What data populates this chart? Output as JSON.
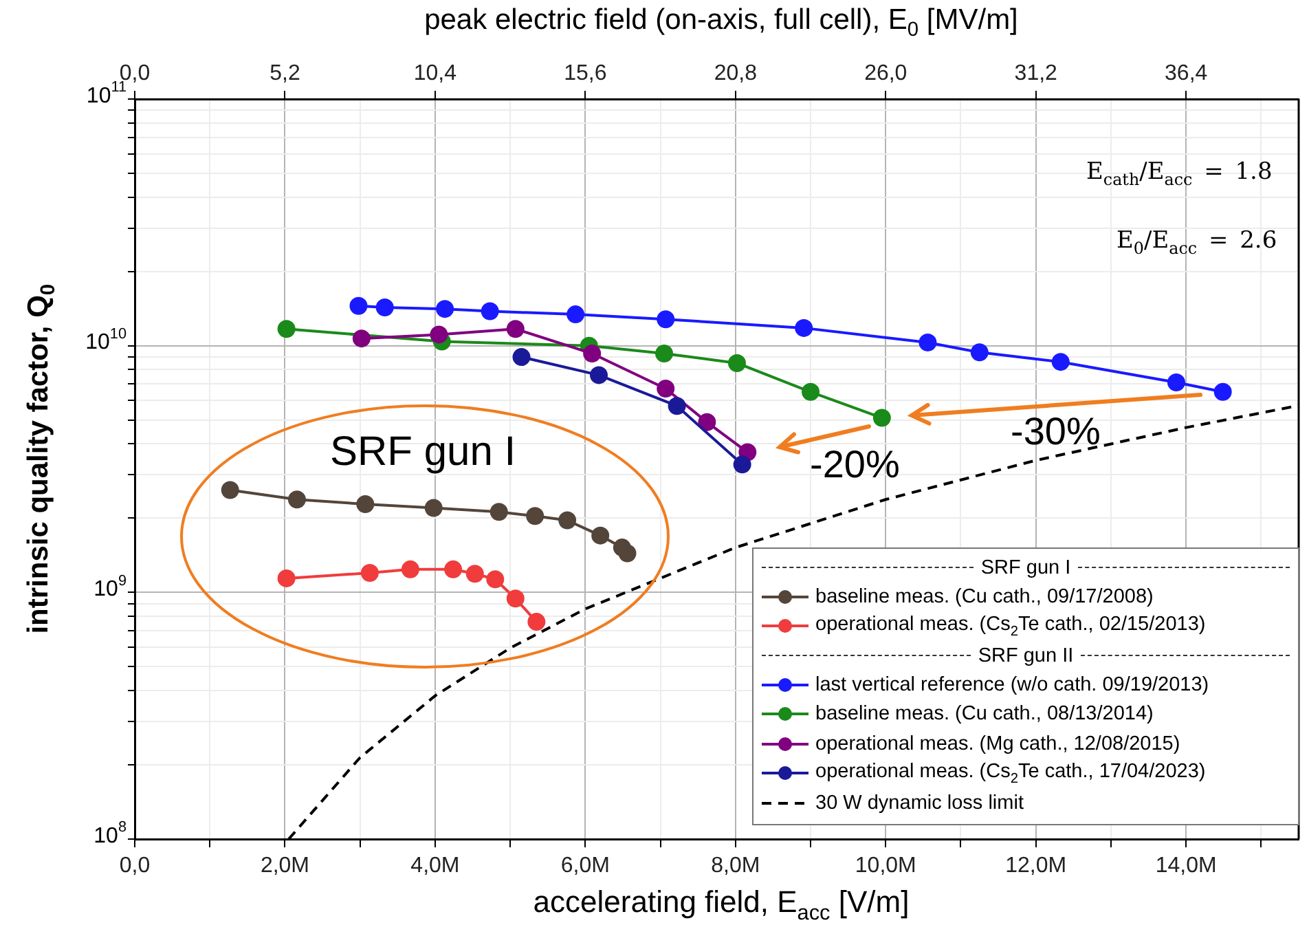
{
  "chart_data": {
    "type": "line",
    "xlabel": "accelerating field, E$_{acc}$ [V/m]",
    "ylabel": "intrinsic quality factor, Q$_{0}$",
    "x2label": "peak electric field (on-axis, full cell), E$_{0}$ [MV/m]",
    "xlim": [
      0,
      15.5
    ],
    "xticks": [
      {
        "value": 0,
        "label": "0,0"
      },
      {
        "value": 1,
        "label": null
      },
      {
        "value": 2,
        "label": "2,0M"
      },
      {
        "value": 3,
        "label": null
      },
      {
        "value": 4,
        "label": "4,0M"
      },
      {
        "value": 5,
        "label": null
      },
      {
        "value": 6,
        "label": "6,0M"
      },
      {
        "value": 7,
        "label": null
      },
      {
        "value": 8,
        "label": "8,0M"
      },
      {
        "value": 9,
        "label": null
      },
      {
        "value": 10,
        "label": "10,0M"
      },
      {
        "value": 11,
        "label": null
      },
      {
        "value": 12,
        "label": "12,0M"
      },
      {
        "value": 13,
        "label": null
      },
      {
        "value": 14,
        "label": "14,0M"
      },
      {
        "value": 15,
        "label": null
      }
    ],
    "x2lim": [
      0,
      40.3
    ],
    "x2ticks": [
      {
        "value": 0,
        "label": "0,0"
      },
      {
        "value": 5.2,
        "label": "5,2"
      },
      {
        "value": 10.4,
        "label": "10,4"
      },
      {
        "value": 15.6,
        "label": "15,6"
      },
      {
        "value": 20.8,
        "label": "20,8"
      },
      {
        "value": 26,
        "label": "26,0"
      },
      {
        "value": 31.2,
        "label": "31,2"
      },
      {
        "value": 36.4,
        "label": "36,4"
      }
    ],
    "log": "y",
    "ylim": [
      100000000,
      100000000000
    ],
    "yticks": [
      {
        "value": 100000000,
        "label": "10$^{8}$"
      },
      {
        "value": 200000000,
        "label": null
      },
      {
        "value": 300000000,
        "label": null
      },
      {
        "value": 400000000,
        "label": null
      },
      {
        "value": 500000000,
        "label": null
      },
      {
        "value": 600000000,
        "label": null
      },
      {
        "value": 700000000,
        "label": null
      },
      {
        "value": 800000000,
        "label": null
      },
      {
        "value": 900000000,
        "label": null
      },
      {
        "value": 1000000000,
        "label": "10$^{9}$"
      },
      {
        "value": 2000000000,
        "label": null
      },
      {
        "value": 3000000000,
        "label": null
      },
      {
        "value": 4000000000,
        "label": null
      },
      {
        "value": 5000000000,
        "label": null
      },
      {
        "value": 6000000000,
        "label": null
      },
      {
        "value": 7000000000,
        "label": null
      },
      {
        "value": 8000000000,
        "label": null
      },
      {
        "value": 9000000000,
        "label": null
      },
      {
        "value": 10000000000,
        "label": "10$^{10}$"
      },
      {
        "value": 20000000000,
        "label": null
      },
      {
        "value": 30000000000,
        "label": null
      },
      {
        "value": 40000000000,
        "label": null
      },
      {
        "value": 50000000000,
        "label": null
      },
      {
        "value": 60000000000,
        "label": null
      },
      {
        "value": 70000000000,
        "label": null
      },
      {
        "value": 80000000000,
        "label": null
      },
      {
        "value": 90000000000,
        "label": null
      },
      {
        "value": 100000000000,
        "label": "10$^{11}$"
      }
    ],
    "grid": true,
    "legend": "bottom right",
    "marker": "circle",
    "series": [
      {
        "name": "baseline meas. (Cu cath., 09/17/2008)",
        "color": "#54453a",
        "x": [
          1.27,
          2.16,
          3.07,
          3.98,
          4.85,
          5.33,
          5.76,
          6.2,
          6.49,
          6.56
        ],
        "values": [
          2600000000,
          2380000000,
          2280000000,
          2200000000,
          2120000000,
          2040000000,
          1960000000,
          1700000000,
          1520000000,
          1440000000
        ]
      },
      {
        "name": "operational meas. (Cs$_{2}$Te cath., 02/15/2013)",
        "color": "#f03c3c",
        "x": [
          2.02,
          3.13,
          3.67,
          4.24,
          4.53,
          4.8,
          5.07,
          5.35
        ],
        "values": [
          1140000000,
          1200000000,
          1240000000,
          1240000000,
          1190000000,
          1130000000,
          944000000,
          760000000
        ]
      },
      {
        "name": "last vertical reference (w/o cath. 09/19/2013)",
        "color": "#1a1aff",
        "x": [
          2.98,
          3.33,
          4.13,
          4.73,
          5.87,
          7.07,
          8.91,
          10.56,
          11.25,
          12.33,
          13.87,
          14.49
        ],
        "values": [
          14500000000,
          14300000000,
          14100000000,
          13800000000,
          13400000000,
          12800000000,
          11800000000,
          10300000000,
          9400000000,
          8600000000,
          7100000000,
          6500000000
        ]
      },
      {
        "name": "baseline meas. (Cu cath., 08/13/2014)",
        "color": "#1a8a1a",
        "x": [
          2.02,
          4.09,
          6.05,
          7.05,
          8.02,
          9.0,
          9.95
        ],
        "values": [
          11700000000,
          10400000000,
          10000000000,
          9300000000,
          8500000000,
          6500000000,
          5100000000
        ]
      },
      {
        "name": "operational meas. (Mg cath., 12/08/2015)",
        "color": "#800080",
        "x": [
          3.02,
          4.05,
          5.07,
          6.09,
          7.07,
          7.62,
          8.16
        ],
        "values": [
          10700000000,
          11100000000,
          11700000000,
          9300000000,
          6700000000,
          4900000000,
          3700000000
        ]
      },
      {
        "name": "operational meas. (Cs$_{2}$Te cath., 17/04/2023)",
        "color": "#1a1a99",
        "x": [
          5.15,
          6.18,
          7.22,
          8.09
        ],
        "values": [
          9000000000,
          7600000000,
          5700000000,
          3300000000
        ]
      },
      {
        "name": "30 W dynamic loss limit",
        "color": "#000000",
        "marker": "none",
        "line_style": "dashed",
        "x": [
          2.05,
          3,
          4,
          5,
          6,
          8,
          10,
          12,
          14,
          15.5
        ],
        "values": [
          100000000,
          214000000,
          381000000,
          595000000,
          857000000,
          1520000000,
          2380000000,
          3430000000,
          4660000000,
          5720000000
        ]
      }
    ],
    "annotations": [
      "SRF gun I",
      "-20%",
      "-30%",
      "E$_{cath}$/E$_{acc}$ = 1.8",
      "E$_{0}$/E$_{acc}$ = 2.6",
      "SRF gun I",
      "SRF gun II"
    ]
  }
}
